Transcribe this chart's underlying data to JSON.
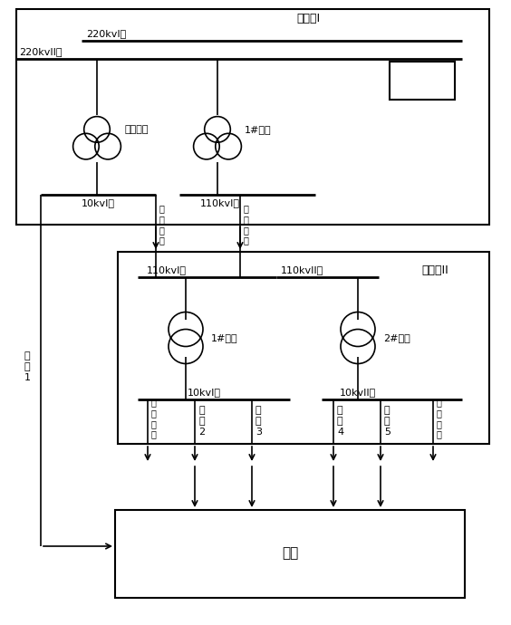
{
  "title": "变电站I",
  "title2": "变电站II",
  "title3": "用户",
  "labels": {
    "220kv_I": "220kvI母",
    "220kv_II": "220kvII母",
    "10kv_I_s1": "10kvI母",
    "110kv_I_s1": "110kvI母",
    "qita_main": "其他主变",
    "1_main": "1#主变",
    "110kv_I_s1b": "110kvI母",
    "110kv_II_s2": "110kvII母",
    "1_main_s2": "1#主变",
    "2_main_s2": "2#主变",
    "10kv_I_s2": "10kvI母",
    "10kv_II_s2": "10kvII母",
    "xianlu1": "线\n路\n1",
    "xianlu2": "线\n路\n2",
    "xianlu3": "线\n路\n3",
    "xianlu4": "线\n路\n4",
    "xianlu5": "线\n路\n5",
    "qita_line": "其\n他\n线\n路"
  }
}
